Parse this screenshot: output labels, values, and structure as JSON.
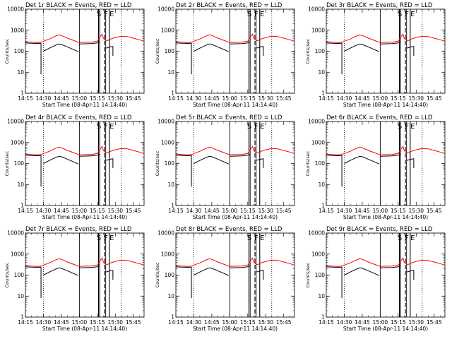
{
  "chart_data": {
    "type": "line",
    "layout": "3x3 grid of identical-format panels",
    "yscale": "log",
    "ylim": [
      1,
      10000
    ],
    "y_ticks": [
      "1",
      "10",
      "100",
      "1000",
      "10000"
    ],
    "x_range": [
      "14:15",
      "15:54"
    ],
    "x_ticks": [
      "14:15",
      "14:30",
      "14:45",
      "15:00",
      "15:15",
      "15:30",
      "15:45"
    ],
    "xlabel": "Start Time (08-Apr-11 14:14:40)",
    "ylabel": "Counts/sec",
    "marker_labels": [
      "S",
      "F",
      "E"
    ],
    "dotted_lines": [
      "14:30",
      "15:35"
    ],
    "series_colors": {
      "black": "#000000",
      "red": "#ff0000"
    },
    "panels": [
      {
        "title": "Det 1r  BLACK = Events, RED = LLD"
      },
      {
        "title": "Det 2r  BLACK = Events, RED = LLD"
      },
      {
        "title": "Det 3r  BLACK = Events, RED = LLD"
      },
      {
        "title": "Det 4r  BLACK = Events, RED = LLD"
      },
      {
        "title": "Det 5r  BLACK = Events, RED = LLD"
      },
      {
        "title": "Det 6r  BLACK = Events, RED = LLD"
      },
      {
        "title": "Det 7r  BLACK = Events, RED = LLD"
      },
      {
        "title": "Det 8r  BLACK = Events, RED = LLD"
      },
      {
        "title": "Det 9r  BLACK = Events, RED = LLD"
      }
    ],
    "series": [
      {
        "name": "LLD",
        "color": "red",
        "x": [
          "14:15",
          "14:20",
          "14:25",
          "14:28",
          "14:30",
          "14:35",
          "14:40",
          "14:43",
          "14:45",
          "14:50",
          "14:55",
          "14:59",
          "15:00",
          "15:05",
          "15:10",
          "15:15",
          "15:18",
          "15:19",
          "15:20",
          "15:22",
          "15:24",
          "15:26",
          "15:30",
          "15:35",
          "15:40",
          "15:45",
          "15:50",
          "15:54"
        ],
        "y": [
          280,
          270,
          260,
          265,
          300,
          380,
          520,
          600,
          560,
          420,
          330,
          270,
          260,
          265,
          270,
          300,
          550,
          650,
          420,
          320,
          330,
          380,
          450,
          520,
          500,
          420,
          350,
          300
        ]
      },
      {
        "name": "Events",
        "color": "black",
        "segments": [
          {
            "x": [
              "14:15",
              "14:20",
              "14:25",
              "14:28"
            ],
            "y": [
              250,
              240,
              235,
              240
            ]
          },
          {
            "x": [
              "14:30",
              "14:35",
              "14:40",
              "14:43",
              "14:45",
              "14:50",
              "14:55",
              "14:59"
            ],
            "y": [
              100,
              140,
              190,
              220,
              210,
              160,
              120,
              95
            ]
          },
          {
            "x": [
              "15:00",
              "15:05",
              "15:10",
              "15:15",
              "15:17"
            ],
            "y": [
              220,
              225,
              230,
              250,
              280
            ]
          },
          {
            "x": [
              "15:22",
              "15:26",
              "15:28"
            ],
            "y": [
              140,
              160,
              170
            ]
          }
        ]
      }
    ]
  }
}
